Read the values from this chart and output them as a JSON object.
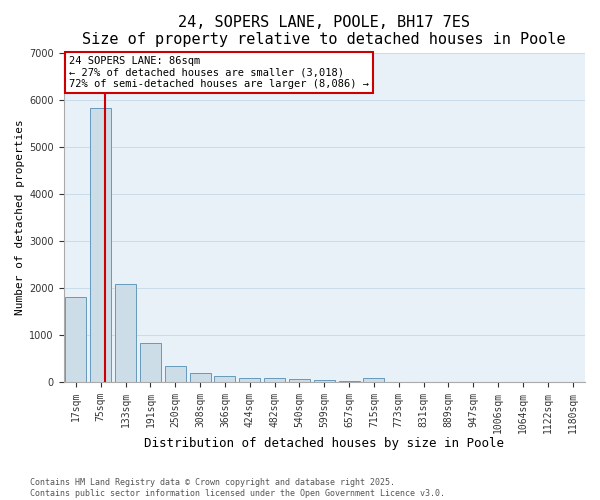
{
  "title": "24, SOPERS LANE, POOLE, BH17 7ES",
  "subtitle": "Size of property relative to detached houses in Poole",
  "xlabel": "Distribution of detached houses by size in Poole",
  "ylabel": "Number of detached properties",
  "bar_labels": [
    "17sqm",
    "75sqm",
    "133sqm",
    "191sqm",
    "250sqm",
    "308sqm",
    "366sqm",
    "424sqm",
    "482sqm",
    "540sqm",
    "599sqm",
    "657sqm",
    "715sqm",
    "773sqm",
    "831sqm",
    "889sqm",
    "947sqm",
    "1006sqm",
    "1064sqm",
    "1122sqm",
    "1180sqm"
  ],
  "bar_values": [
    1800,
    5820,
    2090,
    820,
    340,
    200,
    120,
    90,
    75,
    55,
    35,
    25,
    75,
    0,
    0,
    0,
    0,
    0,
    0,
    0,
    0
  ],
  "bar_color": "#ccdde8",
  "bar_edge_color": "#6699bb",
  "ylim": [
    0,
    7000
  ],
  "property_label": "24 SOPERS LANE: 86sqm",
  "annotation_line1": "← 27% of detached houses are smaller (3,018)",
  "annotation_line2": "72% of semi-detached houses are larger (8,086) →",
  "red_line_x": 1.17,
  "red_line_color": "#cc0000",
  "annotation_box_edge": "#cc0000",
  "grid_color": "#c5d8e8",
  "background_color": "#e8f0f8",
  "footnote1": "Contains HM Land Registry data © Crown copyright and database right 2025.",
  "footnote2": "Contains public sector information licensed under the Open Government Licence v3.0.",
  "title_fontsize": 11,
  "xlabel_fontsize": 9,
  "ylabel_fontsize": 8,
  "tick_fontsize": 7,
  "annotation_fontsize": 7.5,
  "footnote_fontsize": 6
}
